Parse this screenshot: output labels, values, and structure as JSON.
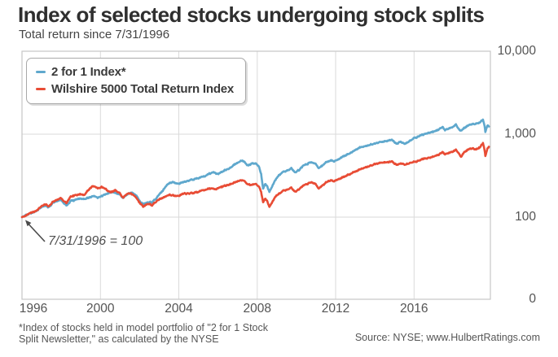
{
  "header": {
    "title": "Index of selected stocks undergoing stock splits",
    "subtitle": "Total return since 7/31/1996"
  },
  "annotation": {
    "text": "7/31/1996 = 100"
  },
  "footnotes": {
    "line1": "*Index of stocks held in model portfolio of \"2 for 1 Stock",
    "line2": "Split Newsletter,\" as calculated by the NYSE",
    "source": "Source: NYSE; www.HulbertRatings.com"
  },
  "chart_data": {
    "type": "line",
    "title": "Index of selected stocks undergoing stock splits",
    "subtitle": "Total return since 7/31/1996",
    "grid": true,
    "legend_position": "top-left",
    "x_axis": {
      "ticks": [
        "1996",
        "2000",
        "2004",
        "2008",
        "2012",
        "2016"
      ],
      "range": [
        1996.58,
        2020.4
      ]
    },
    "y_axis": {
      "scale": "log",
      "ylim": [
        10,
        10000
      ],
      "ticks": [
        {
          "value": 100,
          "label": "100"
        },
        {
          "value": 1000,
          "label": "1,000"
        },
        {
          "value": 10000,
          "label": "10,000"
        }
      ],
      "baseline_label": "0"
    },
    "base_value_note": "7/31/1996 = 100",
    "series": [
      {
        "name": "2 for 1 Index*",
        "color": "#5fa8cd",
        "points": [
          [
            1996.58,
            100
          ],
          [
            1996.8,
            106
          ],
          [
            1997.05,
            112
          ],
          [
            1997.3,
            118
          ],
          [
            1997.55,
            130
          ],
          [
            1997.8,
            138
          ],
          [
            1997.92,
            131
          ],
          [
            1998.1,
            146
          ],
          [
            1998.35,
            157
          ],
          [
            1998.55,
            162
          ],
          [
            1998.72,
            146
          ],
          [
            1998.85,
            138
          ],
          [
            1999.05,
            155
          ],
          [
            1999.3,
            162
          ],
          [
            1999.55,
            168
          ],
          [
            1999.8,
            165
          ],
          [
            2000.0,
            172
          ],
          [
            2000.2,
            180
          ],
          [
            2000.45,
            172
          ],
          [
            2000.7,
            182
          ],
          [
            2000.95,
            192
          ],
          [
            2001.2,
            200
          ],
          [
            2001.45,
            193
          ],
          [
            2001.6,
            183
          ],
          [
            2001.73,
            168
          ],
          [
            2001.95,
            190
          ],
          [
            2002.2,
            196
          ],
          [
            2002.45,
            176
          ],
          [
            2002.62,
            152
          ],
          [
            2002.8,
            143
          ],
          [
            2003.0,
            153
          ],
          [
            2003.2,
            149
          ],
          [
            2003.45,
            172
          ],
          [
            2003.7,
            200
          ],
          [
            2003.95,
            240
          ],
          [
            2004.1,
            258
          ],
          [
            2004.3,
            263
          ],
          [
            2004.55,
            250
          ],
          [
            2004.8,
            266
          ],
          [
            2005.05,
            272
          ],
          [
            2005.3,
            284
          ],
          [
            2005.6,
            296
          ],
          [
            2005.9,
            312
          ],
          [
            2006.1,
            332
          ],
          [
            2006.35,
            348
          ],
          [
            2006.55,
            328
          ],
          [
            2006.8,
            352
          ],
          [
            2007.0,
            376
          ],
          [
            2007.25,
            400
          ],
          [
            2007.45,
            438
          ],
          [
            2007.65,
            462
          ],
          [
            2007.8,
            478
          ],
          [
            2007.95,
            452
          ],
          [
            2008.1,
            420
          ],
          [
            2008.3,
            438
          ],
          [
            2008.5,
            446
          ],
          [
            2008.65,
            418
          ],
          [
            2008.78,
            330
          ],
          [
            2008.88,
            225
          ],
          [
            2009.0,
            250
          ],
          [
            2009.1,
            232
          ],
          [
            2009.2,
            198
          ],
          [
            2009.35,
            238
          ],
          [
            2009.5,
            282
          ],
          [
            2009.7,
            322
          ],
          [
            2009.9,
            348
          ],
          [
            2010.1,
            362
          ],
          [
            2010.32,
            388
          ],
          [
            2010.5,
            345
          ],
          [
            2010.7,
            368
          ],
          [
            2010.95,
            420
          ],
          [
            2011.15,
            442
          ],
          [
            2011.35,
            458
          ],
          [
            2011.55,
            446
          ],
          [
            2011.72,
            388
          ],
          [
            2011.82,
            402
          ],
          [
            2011.95,
            425
          ],
          [
            2012.1,
            462
          ],
          [
            2012.32,
            482
          ],
          [
            2012.5,
            470
          ],
          [
            2012.75,
            502
          ],
          [
            2013.0,
            542
          ],
          [
            2013.3,
            585
          ],
          [
            2013.6,
            645
          ],
          [
            2013.9,
            702
          ],
          [
            2014.1,
            722
          ],
          [
            2014.4,
            752
          ],
          [
            2014.6,
            772
          ],
          [
            2014.9,
            805
          ],
          [
            2015.2,
            835
          ],
          [
            2015.45,
            855
          ],
          [
            2015.7,
            765
          ],
          [
            2015.9,
            805
          ],
          [
            2016.1,
            768
          ],
          [
            2016.35,
            830
          ],
          [
            2016.6,
            900
          ],
          [
            2016.85,
            950
          ],
          [
            2017.1,
            1000
          ],
          [
            2017.35,
            1045
          ],
          [
            2017.6,
            1085
          ],
          [
            2017.85,
            1140
          ],
          [
            2018.05,
            1225
          ],
          [
            2018.15,
            1115
          ],
          [
            2018.3,
            1160
          ],
          [
            2018.5,
            1210
          ],
          [
            2018.72,
            1310
          ],
          [
            2018.85,
            1150
          ],
          [
            2018.98,
            1090
          ],
          [
            2019.15,
            1200
          ],
          [
            2019.35,
            1270
          ],
          [
            2019.55,
            1310
          ],
          [
            2019.75,
            1340
          ],
          [
            2019.95,
            1405
          ],
          [
            2020.1,
            1505
          ],
          [
            2020.17,
            1310
          ],
          [
            2020.22,
            1065
          ],
          [
            2020.28,
            1180
          ],
          [
            2020.33,
            1275
          ],
          [
            2020.4,
            1235
          ]
        ]
      },
      {
        "name": "Wilshire 5000 Total Return Index",
        "color": "#e84c35",
        "points": [
          [
            1996.58,
            100
          ],
          [
            1996.8,
            105
          ],
          [
            1997.05,
            113
          ],
          [
            1997.3,
            119
          ],
          [
            1997.55,
            133
          ],
          [
            1997.8,
            143
          ],
          [
            1997.92,
            134
          ],
          [
            1998.1,
            149
          ],
          [
            1998.35,
            163
          ],
          [
            1998.55,
            171
          ],
          [
            1998.72,
            155
          ],
          [
            1998.85,
            149
          ],
          [
            1999.05,
            174
          ],
          [
            1999.3,
            184
          ],
          [
            1999.55,
            189
          ],
          [
            1999.75,
            184
          ],
          [
            2000.0,
            218
          ],
          [
            2000.2,
            237
          ],
          [
            2000.45,
            222
          ],
          [
            2000.65,
            232
          ],
          [
            2000.9,
            213
          ],
          [
            2001.1,
            198
          ],
          [
            2001.35,
            211
          ],
          [
            2001.55,
            196
          ],
          [
            2001.73,
            170
          ],
          [
            2001.95,
            193
          ],
          [
            2002.2,
            189
          ],
          [
            2002.45,
            166
          ],
          [
            2002.62,
            146
          ],
          [
            2002.78,
            133
          ],
          [
            2003.0,
            146
          ],
          [
            2003.2,
            139
          ],
          [
            2003.45,
            156
          ],
          [
            2003.7,
            168
          ],
          [
            2003.95,
            180
          ],
          [
            2004.1,
            186
          ],
          [
            2004.3,
            182
          ],
          [
            2004.55,
            179
          ],
          [
            2004.85,
            194
          ],
          [
            2005.1,
            191
          ],
          [
            2005.4,
            198
          ],
          [
            2005.7,
            206
          ],
          [
            2006.0,
            216
          ],
          [
            2006.2,
            223
          ],
          [
            2006.45,
            216
          ],
          [
            2006.7,
            229
          ],
          [
            2007.0,
            243
          ],
          [
            2007.25,
            252
          ],
          [
            2007.45,
            263
          ],
          [
            2007.65,
            273
          ],
          [
            2007.8,
            279
          ],
          [
            2007.95,
            268
          ],
          [
            2008.1,
            249
          ],
          [
            2008.3,
            243
          ],
          [
            2008.5,
            251
          ],
          [
            2008.65,
            238
          ],
          [
            2008.78,
            200
          ],
          [
            2008.88,
            153
          ],
          [
            2009.0,
            166
          ],
          [
            2009.1,
            153
          ],
          [
            2009.2,
            132
          ],
          [
            2009.35,
            153
          ],
          [
            2009.5,
            176
          ],
          [
            2009.7,
            193
          ],
          [
            2009.9,
            206
          ],
          [
            2010.1,
            214
          ],
          [
            2010.32,
            227
          ],
          [
            2010.5,
            202
          ],
          [
            2010.7,
            214
          ],
          [
            2010.95,
            241
          ],
          [
            2011.15,
            253
          ],
          [
            2011.35,
            262
          ],
          [
            2011.55,
            255
          ],
          [
            2011.72,
            221
          ],
          [
            2011.82,
            231
          ],
          [
            2011.95,
            244
          ],
          [
            2012.1,
            263
          ],
          [
            2012.32,
            278
          ],
          [
            2012.5,
            270
          ],
          [
            2012.75,
            288
          ],
          [
            2013.0,
            306
          ],
          [
            2013.3,
            330
          ],
          [
            2013.6,
            355
          ],
          [
            2013.9,
            385
          ],
          [
            2014.1,
            398
          ],
          [
            2014.4,
            420
          ],
          [
            2014.6,
            437
          ],
          [
            2014.9,
            452
          ],
          [
            2015.2,
            462
          ],
          [
            2015.45,
            467
          ],
          [
            2015.7,
            426
          ],
          [
            2015.9,
            442
          ],
          [
            2016.1,
            431
          ],
          [
            2016.35,
            452
          ],
          [
            2016.6,
            464
          ],
          [
            2016.85,
            482
          ],
          [
            2017.1,
            506
          ],
          [
            2017.35,
            521
          ],
          [
            2017.6,
            541
          ],
          [
            2017.85,
            566
          ],
          [
            2018.05,
            612
          ],
          [
            2018.15,
            572
          ],
          [
            2018.3,
            592
          ],
          [
            2018.5,
            612
          ],
          [
            2018.72,
            652
          ],
          [
            2018.85,
            592
          ],
          [
            2018.98,
            532
          ],
          [
            2019.15,
            612
          ],
          [
            2019.35,
            652
          ],
          [
            2019.55,
            672
          ],
          [
            2019.75,
            662
          ],
          [
            2019.95,
            702
          ],
          [
            2020.1,
            790
          ],
          [
            2020.17,
            672
          ],
          [
            2020.22,
            548
          ],
          [
            2020.28,
            610
          ],
          [
            2020.33,
            672
          ],
          [
            2020.4,
            702
          ]
        ]
      }
    ]
  }
}
